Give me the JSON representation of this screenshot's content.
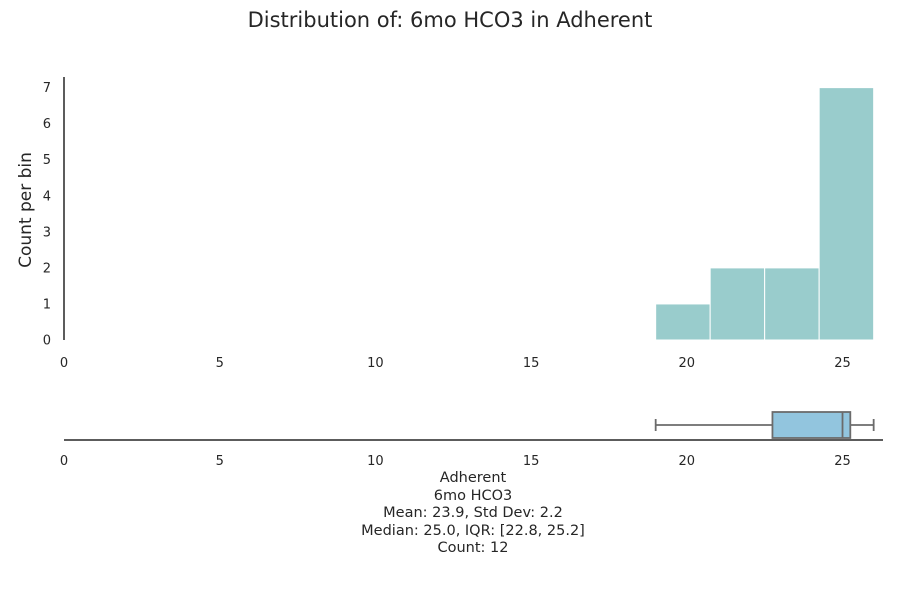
{
  "chart_data": {
    "type": "bar",
    "title": "Distribution of: 6mo HCO3 in Adherent",
    "ylabel": "Count per bin",
    "xlabel": "",
    "xlim": [
      0,
      26.3
    ],
    "ylim": [
      0,
      7.35
    ],
    "xticks": [
      0,
      5,
      10,
      15,
      20,
      25
    ],
    "yticks": [
      0,
      1,
      2,
      3,
      4,
      5,
      6,
      7
    ],
    "grid": false,
    "bins": [
      {
        "x0": 19.0,
        "x1": 20.75,
        "count": 1
      },
      {
        "x0": 20.75,
        "x1": 22.5,
        "count": 2
      },
      {
        "x0": 22.5,
        "x1": 24.25,
        "count": 2
      },
      {
        "x0": 24.25,
        "x1": 26.0,
        "count": 7
      }
    ],
    "boxplot": {
      "whisker_low": 19.0,
      "q1": 22.75,
      "median": 25.0,
      "q3": 25.25,
      "whisker_high": 26.0
    },
    "colors": {
      "bars": "#99cccc",
      "box_fill": "#92c5de",
      "box_stroke": "#6b6b6b"
    },
    "stats": {
      "group": "Adherent",
      "variable": "6mo HCO3",
      "mean_sd": "Mean: 23.9, Std Dev: 2.2",
      "median_iqr": "Median: 25.0, IQR: [22.8, 25.2]",
      "count": "Count: 12"
    }
  }
}
